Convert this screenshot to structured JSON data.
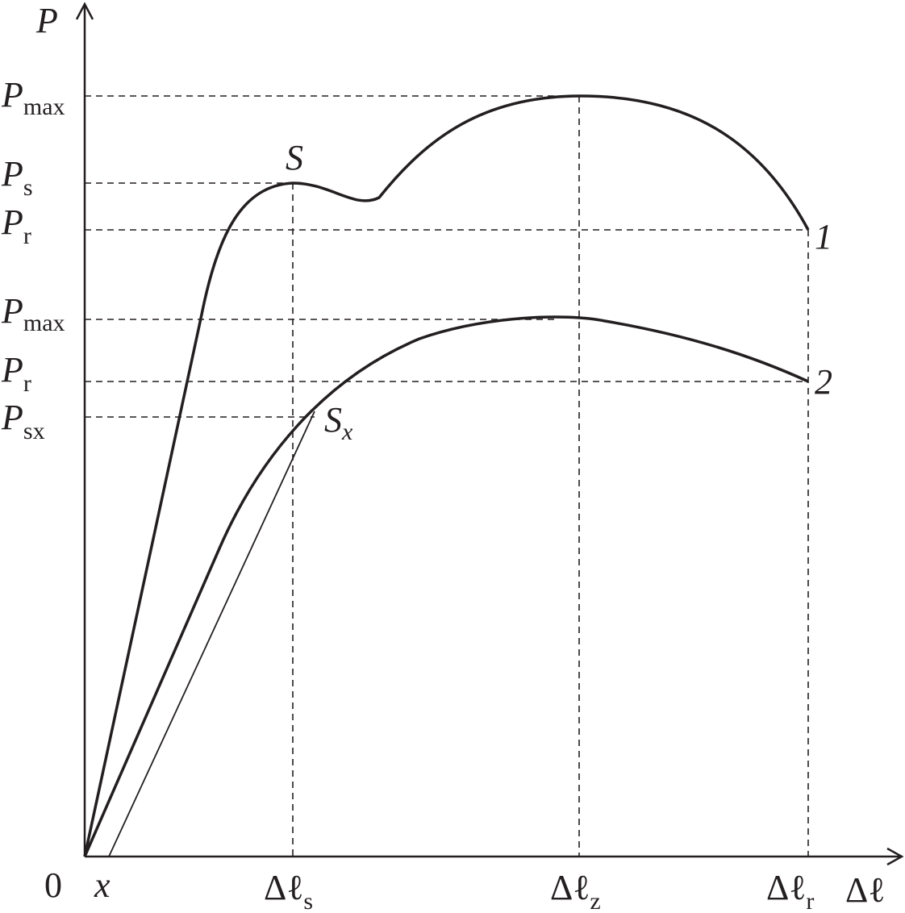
{
  "axes": {
    "y_label": "P",
    "x_label": "Δℓ",
    "origin": "0",
    "offset": "x"
  },
  "x_labels": [
    {
      "main": "Δℓ",
      "sub": "s"
    },
    {
      "main": "Δℓ",
      "sub": "z"
    },
    {
      "main": "Δℓ",
      "sub": "r"
    }
  ],
  "y_labels": [
    {
      "main": "P",
      "sub": "max"
    },
    {
      "main": "P",
      "sub": "s"
    },
    {
      "main": "P",
      "sub": "r"
    },
    {
      "main": "P",
      "sub": "max"
    },
    {
      "main": "P",
      "sub": "r"
    },
    {
      "main": "P",
      "sub": "sx"
    }
  ],
  "points": [
    {
      "main": "S"
    },
    {
      "main": "S",
      "sub": "x"
    }
  ],
  "curves": [
    {
      "label": "1"
    },
    {
      "label": "2"
    }
  ]
}
